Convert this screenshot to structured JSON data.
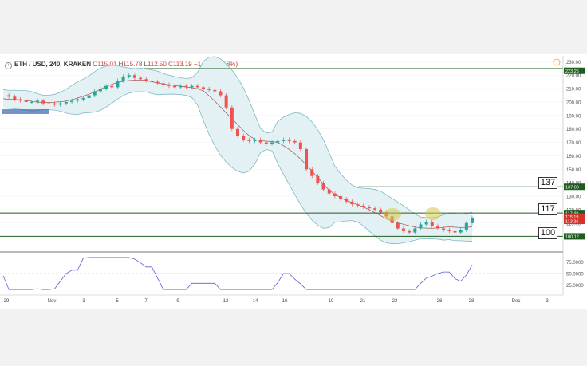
{
  "header": {
    "symbol": "ETH / USD, 240, KRAKEN",
    "o_label": "O",
    "o_value": "115.01",
    "h_label": "H",
    "h_value": "115.78",
    "l_label": "L",
    "l_value": "112.50",
    "c_label": "C",
    "c_value": "113.19",
    "change": "−1.82 (−1.58%)"
  },
  "price_axis": {
    "ticks": [
      "230.00",
      "220.00",
      "210.00",
      "200.00",
      "190.00",
      "180.00",
      "170.00",
      "160.00",
      "150.00",
      "140.00",
      "130.00",
      "120.00",
      "110.00",
      "100.00"
    ],
    "badges": {
      "top": "223.26",
      "r137": "137.00",
      "r117": "117.49",
      "mid1": "115.19",
      "current": "113.26",
      "r100": "100.12"
    }
  },
  "rsi_axis": {
    "ticks": [
      "75.0000",
      "50.0000",
      "25.0000"
    ]
  },
  "time_axis": {
    "ticks": [
      "29",
      "Nov",
      "3",
      "5",
      "7",
      "9",
      "12",
      "14",
      "16",
      "19",
      "21",
      "23",
      "26",
      "28",
      "Dec",
      "3"
    ]
  },
  "levels": {
    "l137": "137",
    "l117": "117",
    "l100": "100"
  },
  "colors": {
    "up": "#26a69a",
    "down": "#ef5350",
    "level": "#1f5c1f",
    "band": "#7fb8c4",
    "band_fill": "#e3f1f4",
    "ma": "#a05050",
    "rsi": "#5b5fd0",
    "marker": "#d4c84a",
    "box": "#4a6db5"
  },
  "chart_data": {
    "type": "candlestick",
    "title": "ETH / USD, 240, KRAKEN",
    "price_range": [
      98,
      232
    ],
    "indicators": [
      "Bollinger Bands",
      "RSI"
    ],
    "horizontal_levels": [
      223.26,
      137.0,
      117.49,
      100.12
    ],
    "rsi_levels": [
      75,
      50,
      25
    ],
    "last_price": 113.26
  }
}
